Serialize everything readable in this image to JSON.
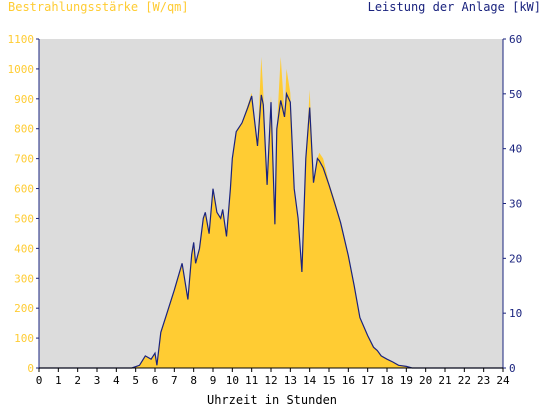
{
  "chart_data": {
    "type": "area",
    "ylabel_left": "Bestrahlungsstärke [W/qm]",
    "ylabel_right": "Leistung der Anlage [kW]",
    "xlabel": "Uhrzeit in Stunden",
    "xlim": [
      0,
      24
    ],
    "ylim_left": [
      0,
      1100
    ],
    "ylim_right": [
      0,
      60
    ],
    "x_ticks": [
      "0",
      "1",
      "2",
      "3",
      "4",
      "5",
      "6",
      "7",
      "8",
      "9",
      "10",
      "11",
      "12",
      "13",
      "14",
      "15",
      "16",
      "17",
      "18",
      "19",
      "20",
      "21",
      "22",
      "23",
      "24"
    ],
    "y_ticks_left": [
      "0",
      "100",
      "200",
      "300",
      "400",
      "500",
      "600",
      "700",
      "800",
      "900",
      "1000",
      "1100"
    ],
    "y_ticks_right": [
      "0",
      "10",
      "20",
      "30",
      "40",
      "50",
      "60"
    ],
    "grid": false,
    "colors": {
      "irradiance": "#ffcc33",
      "power": "#1a237e",
      "plot_bg": "#dcdcdc",
      "axis": "#1a237e"
    },
    "series": [
      {
        "name": "Bestrahlungsstärke [W/qm]",
        "axis": "left",
        "x": [
          0,
          4.8,
          5.2,
          5.5,
          5.8,
          6.0,
          6.1,
          6.3,
          6.6,
          7.0,
          7.4,
          7.7,
          7.9,
          8.0,
          8.1,
          8.3,
          8.5,
          8.6,
          8.8,
          9.0,
          9.2,
          9.4,
          9.5,
          9.7,
          9.9,
          10.0,
          10.2,
          10.5,
          10.8,
          11.0,
          11.3,
          11.5,
          11.6,
          11.8,
          12.0,
          12.2,
          12.3,
          12.5,
          12.7,
          12.8,
          13.0,
          13.2,
          13.4,
          13.6,
          13.8,
          14.0,
          14.2,
          14.4,
          14.5,
          14.7,
          15.0,
          15.3,
          15.6,
          16.0,
          16.3,
          16.6,
          17.0,
          17.3,
          17.5,
          17.7,
          18.0,
          18.3,
          18.6,
          19.0,
          19.3,
          19.6,
          19.9,
          20.0,
          24
        ],
        "y": [
          0,
          0,
          10,
          40,
          30,
          50,
          10,
          120,
          180,
          260,
          350,
          230,
          380,
          420,
          350,
          400,
          500,
          520,
          450,
          600,
          520,
          500,
          530,
          440,
          600,
          700,
          790,
          820,
          880,
          920,
          750,
          1040,
          920,
          620,
          910,
          480,
          800,
          1040,
          850,
          1000,
          920,
          600,
          500,
          320,
          700,
          930,
          620,
          700,
          720,
          700,
          620,
          560,
          490,
          380,
          280,
          170,
          110,
          70,
          60,
          40,
          30,
          20,
          10,
          5,
          0,
          0,
          0,
          0,
          0
        ]
      },
      {
        "name": "Leistung der Anlage [kW]",
        "axis": "right",
        "x": [
          0,
          4.8,
          5.2,
          5.5,
          5.8,
          6.0,
          6.1,
          6.3,
          6.6,
          7.0,
          7.4,
          7.7,
          7.9,
          8.0,
          8.1,
          8.3,
          8.5,
          8.6,
          8.8,
          9.0,
          9.2,
          9.4,
          9.5,
          9.7,
          9.9,
          10.0,
          10.2,
          10.5,
          10.8,
          11.0,
          11.3,
          11.5,
          11.6,
          11.8,
          12.0,
          12.2,
          12.3,
          12.5,
          12.7,
          12.8,
          13.0,
          13.2,
          13.4,
          13.6,
          13.8,
          14.0,
          14.2,
          14.4,
          14.5,
          14.7,
          15.0,
          15.3,
          15.6,
          16.0,
          16.3,
          16.6,
          17.0,
          17.3,
          17.5,
          17.7,
          18.0,
          18.3,
          18.6,
          19.0,
          19.3,
          19.6,
          19.9,
          20.0,
          24
        ],
        "y": [
          0,
          0,
          0.5,
          2.2,
          1.6,
          2.7,
          0.5,
          6.5,
          9.8,
          14.2,
          19.1,
          12.5,
          20.7,
          22.9,
          19.1,
          21.8,
          27.3,
          28.4,
          24.5,
          32.7,
          28.4,
          27.3,
          28.9,
          24.0,
          32.7,
          38.2,
          43.1,
          44.7,
          47.5,
          49.6,
          40.5,
          49.8,
          48.0,
          33.4,
          48.5,
          26.2,
          43.6,
          48.8,
          45.8,
          50.0,
          48.5,
          32.7,
          27.3,
          17.5,
          38.2,
          47.5,
          33.8,
          38.2,
          37.8,
          36.5,
          33.4,
          30.0,
          26.5,
          20.5,
          15.1,
          9.2,
          5.9,
          3.8,
          3.2,
          2.2,
          1.6,
          1.1,
          0.5,
          0.3,
          0,
          0,
          0,
          0,
          0
        ]
      }
    ]
  }
}
